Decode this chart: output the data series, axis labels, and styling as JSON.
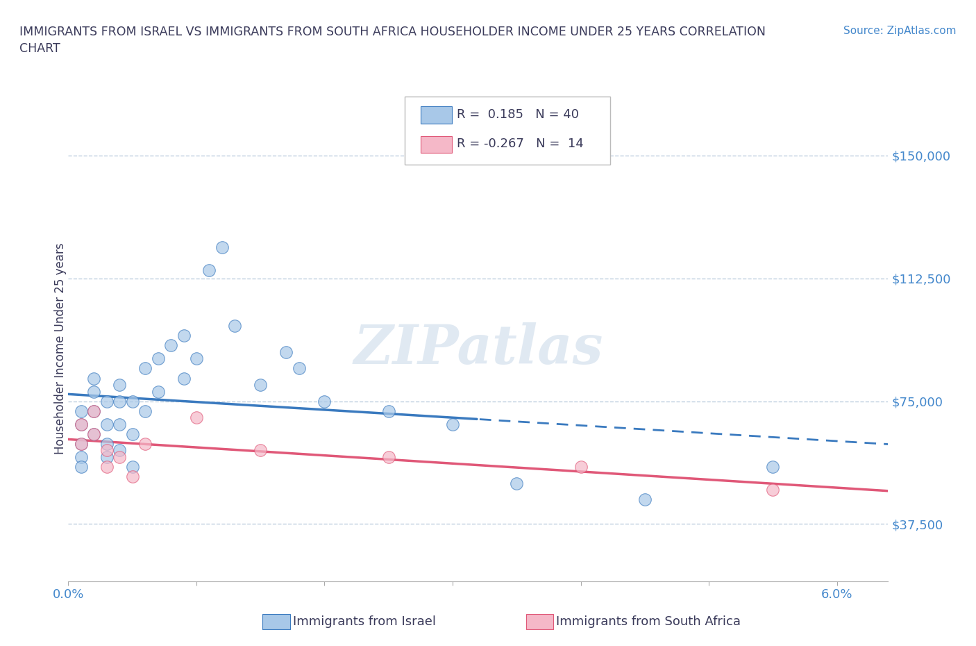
{
  "title": "IMMIGRANTS FROM ISRAEL VS IMMIGRANTS FROM SOUTH AFRICA HOUSEHOLDER INCOME UNDER 25 YEARS CORRELATION\nCHART",
  "source_text": "Source: ZipAtlas.com",
  "ylabel": "Householder Income Under 25 years",
  "xlim": [
    0.0,
    0.064
  ],
  "ylim": [
    20000,
    162000
  ],
  "yticks": [
    37500,
    75000,
    112500,
    150000
  ],
  "ytick_labels": [
    "$37,500",
    "$75,000",
    "$112,500",
    "$150,000"
  ],
  "xtick_vals": [
    0.0,
    0.01,
    0.02,
    0.03,
    0.04,
    0.05,
    0.06
  ],
  "xtick_labels": [
    "0.0%",
    "",
    "",
    "",
    "",
    "",
    "6.0%"
  ],
  "legend_label1": "Immigrants from Israel",
  "legend_label2": "Immigrants from South Africa",
  "israel_color": "#a8c8e8",
  "israel_line_color": "#3a7abf",
  "sa_color": "#f5b8c8",
  "sa_line_color": "#e05878",
  "title_color": "#3a3a5a",
  "axis_color": "#4488cc",
  "grid_color": "#c0d0e0",
  "watermark": "ZIPatlas",
  "israel_x": [
    0.001,
    0.001,
    0.001,
    0.001,
    0.001,
    0.002,
    0.002,
    0.002,
    0.002,
    0.003,
    0.003,
    0.003,
    0.003,
    0.004,
    0.004,
    0.004,
    0.004,
    0.005,
    0.005,
    0.005,
    0.006,
    0.006,
    0.007,
    0.007,
    0.008,
    0.009,
    0.009,
    0.01,
    0.011,
    0.012,
    0.013,
    0.015,
    0.017,
    0.018,
    0.02,
    0.025,
    0.03,
    0.035,
    0.045,
    0.055
  ],
  "israel_y": [
    62000,
    58000,
    68000,
    72000,
    55000,
    78000,
    65000,
    72000,
    82000,
    75000,
    68000,
    62000,
    58000,
    80000,
    75000,
    68000,
    60000,
    75000,
    65000,
    55000,
    85000,
    72000,
    88000,
    78000,
    92000,
    95000,
    82000,
    88000,
    115000,
    122000,
    98000,
    80000,
    90000,
    85000,
    75000,
    72000,
    68000,
    50000,
    45000,
    55000
  ],
  "sa_x": [
    0.001,
    0.001,
    0.002,
    0.002,
    0.003,
    0.003,
    0.004,
    0.005,
    0.006,
    0.01,
    0.015,
    0.025,
    0.04,
    0.055
  ],
  "sa_y": [
    68000,
    62000,
    72000,
    65000,
    60000,
    55000,
    58000,
    52000,
    62000,
    70000,
    60000,
    58000,
    55000,
    48000
  ],
  "R_israel": 0.185,
  "N_israel": 40,
  "R_sa": -0.267,
  "N_sa": 14,
  "regression_cutoff": 0.032
}
